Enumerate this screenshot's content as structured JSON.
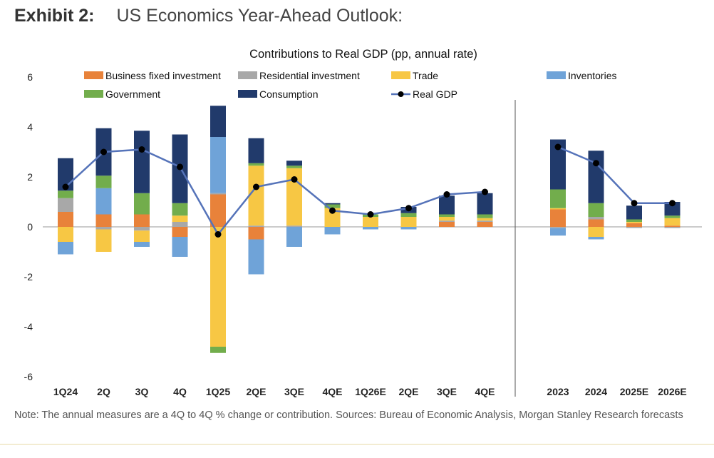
{
  "exhibit": {
    "label": "Exhibit 2:",
    "subtitle": "US Economics Year-Ahead Outlook:"
  },
  "note": "Note: The annual measures are a 4Q to 4Q % change or contribution. Sources: Bureau of Economic Analysis, Morgan Stanley Research forecasts",
  "colors": {
    "bfi": "#e8823a",
    "res": "#a8a8a8",
    "trade": "#f7c744",
    "inv": "#6fa3d8",
    "gov": "#72ad4c",
    "cons": "#213a6b",
    "gdp_line": "#5573b9",
    "gdp_marker": "#000000"
  },
  "chart_data": {
    "type": "bar",
    "stacked": true,
    "title": "Contributions to Real GDP (pp, annual rate)",
    "xlabel": "",
    "ylabel": "",
    "ylim": [
      -6,
      6
    ],
    "yticks": [
      6,
      4,
      2,
      0,
      -2,
      -4,
      -6
    ],
    "legend_position": "top",
    "groups": [
      {
        "name": "quarterly",
        "categories": [
          "1Q24",
          "2Q",
          "3Q",
          "4Q",
          "1Q25",
          "2QE",
          "3QE",
          "4QE",
          "1Q26E",
          "2QE",
          "3QE",
          "4QE"
        ]
      },
      {
        "name": "annual",
        "categories": [
          "2023",
          "2024",
          "2025E",
          "2026E"
        ]
      }
    ],
    "categories": [
      "1Q24",
      "2Q",
      "3Q",
      "4Q",
      "1Q25",
      "2QE",
      "3QE",
      "4QE",
      "1Q26E",
      "2QE",
      "3QE",
      "4QE",
      "2023",
      "2024",
      "2025E",
      "2026E"
    ],
    "series": [
      {
        "key": "bfi",
        "name": "Business fixed investment",
        "values": [
          0.6,
          0.5,
          0.5,
          -0.4,
          1.3,
          -0.5,
          0.0,
          0.0,
          0.0,
          0.0,
          0.2,
          0.2,
          0.7,
          0.3,
          0.15,
          0.05
        ]
      },
      {
        "key": "res",
        "name": "Residential investment",
        "values": [
          0.55,
          -0.1,
          -0.15,
          0.2,
          0.05,
          0.05,
          0.05,
          0.0,
          0.0,
          0.0,
          0.05,
          0.05,
          -0.05,
          0.1,
          -0.05,
          -0.05
        ]
      },
      {
        "key": "trade",
        "name": "Trade",
        "values": [
          -0.6,
          -0.9,
          -0.45,
          0.25,
          -4.8,
          2.4,
          2.3,
          0.75,
          0.4,
          0.4,
          0.15,
          0.1,
          0.05,
          -0.4,
          0.05,
          0.3
        ]
      },
      {
        "key": "inv",
        "name": "Inventories",
        "values": [
          -0.5,
          1.05,
          -0.2,
          -0.8,
          2.25,
          -1.4,
          -0.8,
          -0.3,
          -0.1,
          -0.1,
          0.0,
          0.0,
          -0.3,
          -0.1,
          0.0,
          0.0
        ]
      },
      {
        "key": "gov",
        "name": "Government",
        "values": [
          0.3,
          0.5,
          0.85,
          0.5,
          -0.25,
          0.1,
          0.1,
          0.15,
          0.1,
          0.15,
          0.1,
          0.15,
          0.75,
          0.55,
          0.1,
          0.1
        ]
      },
      {
        "key": "cons",
        "name": "Consumption",
        "values": [
          1.3,
          1.9,
          2.5,
          2.75,
          1.25,
          1.0,
          0.2,
          0.05,
          0.0,
          0.25,
          0.75,
          0.85,
          2.0,
          2.1,
          0.55,
          0.55
        ]
      }
    ],
    "line": {
      "key": "gdp",
      "name": "Real GDP",
      "quarterly_values": [
        1.6,
        3.0,
        3.1,
        2.4,
        -0.3,
        1.6,
        1.9,
        0.65,
        0.5,
        0.75,
        1.3,
        1.4
      ],
      "annual_values": [
        3.2,
        2.55,
        0.95,
        0.95
      ]
    }
  }
}
